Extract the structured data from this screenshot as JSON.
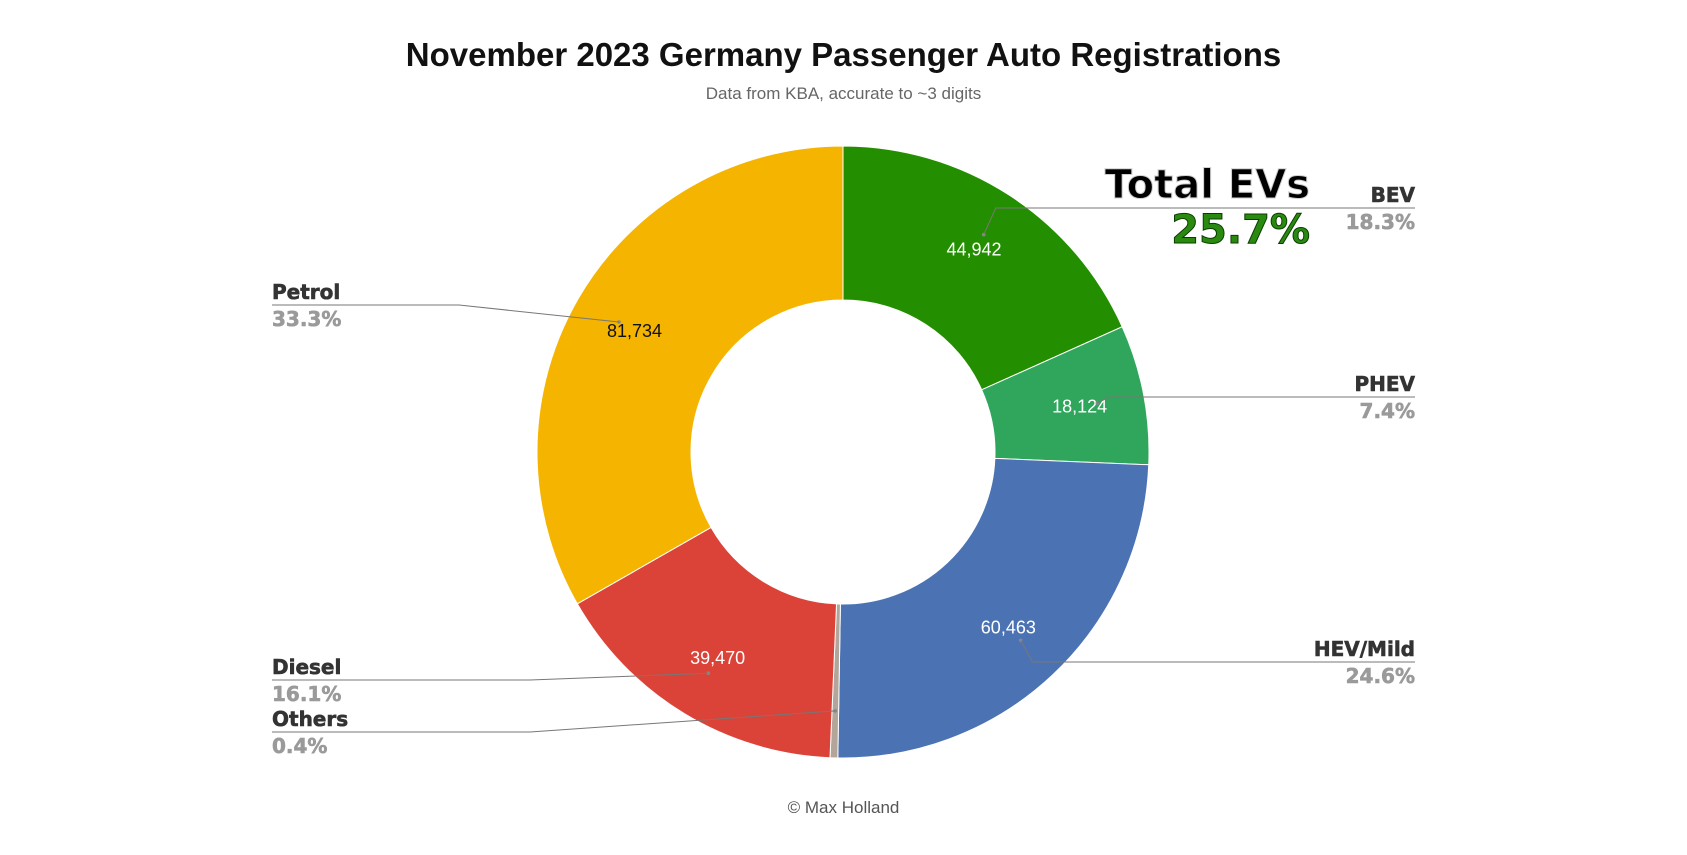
{
  "header": {
    "title": "November 2023 Germany Passenger Auto Registrations",
    "subtitle": "Data from KBA, accurate to ~3 digits"
  },
  "footer": {
    "credit": "© Max Holland"
  },
  "callout": {
    "title": "Total EVs",
    "value": "25.7%",
    "value_color": "#2a8a10"
  },
  "chart_data": {
    "type": "pie",
    "donut": true,
    "title": "November 2023 Germany Passenger Auto Registrations",
    "subtitle": "Data from KBA, accurate to ~3 digits",
    "start_angle_deg": 0,
    "direction": "clockwise",
    "slices": [
      {
        "key": "bev",
        "label": "BEV",
        "value": 44942,
        "value_label": "44,942",
        "percent": "18.3%",
        "color": "#238f00",
        "value_text_color": "#ffffff",
        "side": "right"
      },
      {
        "key": "phev",
        "label": "PHEV",
        "value": 18124,
        "value_label": "18,124",
        "percent": "7.4%",
        "color": "#30a65c",
        "value_text_color": "#ffffff",
        "side": "right"
      },
      {
        "key": "hev",
        "label": "HEV/Mild",
        "value": 60463,
        "value_label": "60,463",
        "percent": "24.6%",
        "color": "#4b73b4",
        "value_text_color": "#ffffff",
        "side": "right"
      },
      {
        "key": "others",
        "label": "Others",
        "value": 1000,
        "value_label": "",
        "percent": "0.4%",
        "color": "#b3a59a",
        "value_text_color": "#ffffff",
        "side": "left"
      },
      {
        "key": "diesel",
        "label": "Diesel",
        "value": 39470,
        "value_label": "39,470",
        "percent": "16.1%",
        "color": "#dc4338",
        "value_text_color": "#ffffff",
        "side": "left"
      },
      {
        "key": "petrol",
        "label": "Petrol",
        "value": 81734,
        "value_label": "81,734",
        "percent": "33.3%",
        "color": "#f4b400",
        "value_text_color": "#111111",
        "side": "left"
      }
    ]
  }
}
